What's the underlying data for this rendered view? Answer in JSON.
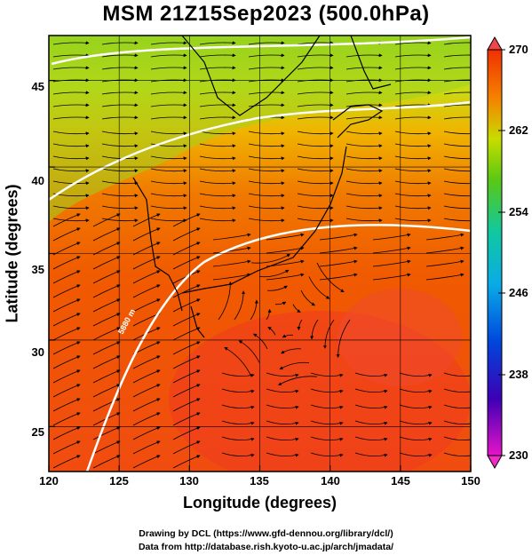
{
  "title": "MSM 21Z15Sep2023 (500.0hPa)",
  "axes": {
    "x_label": "Longitude (degrees)",
    "y_label": "Latitude  (degrees)",
    "x_ticks": [
      "120",
      "125",
      "130",
      "135",
      "140",
      "145",
      "150"
    ],
    "y_ticks": [
      "25",
      "30",
      "35",
      "40",
      "45"
    ]
  },
  "colorbar": {
    "ticks": [
      "270",
      "262",
      "254",
      "246",
      "238",
      "230"
    ]
  },
  "credits": {
    "line1": "Drawing by DCL (https://www.gfd-dennou.org/library/dcl/)",
    "line2": "Data from http://database.rish.kyoto-u.ac.jp/arch/jmadata/"
  },
  "contour_label": "5880 m",
  "chart_data": {
    "type": "heatmap",
    "title": "MSM 21Z15Sep2023 (500.0hPa)",
    "xlabel": "Longitude (degrees)",
    "ylabel": "Latitude  (degrees)",
    "xlim": [
      120,
      150
    ],
    "ylim": [
      22.4,
      47.6
    ],
    "color_scale": {
      "min": 230,
      "max": 270,
      "ticks": [
        270,
        262,
        254,
        246,
        238,
        230
      ]
    },
    "grid": true
  }
}
